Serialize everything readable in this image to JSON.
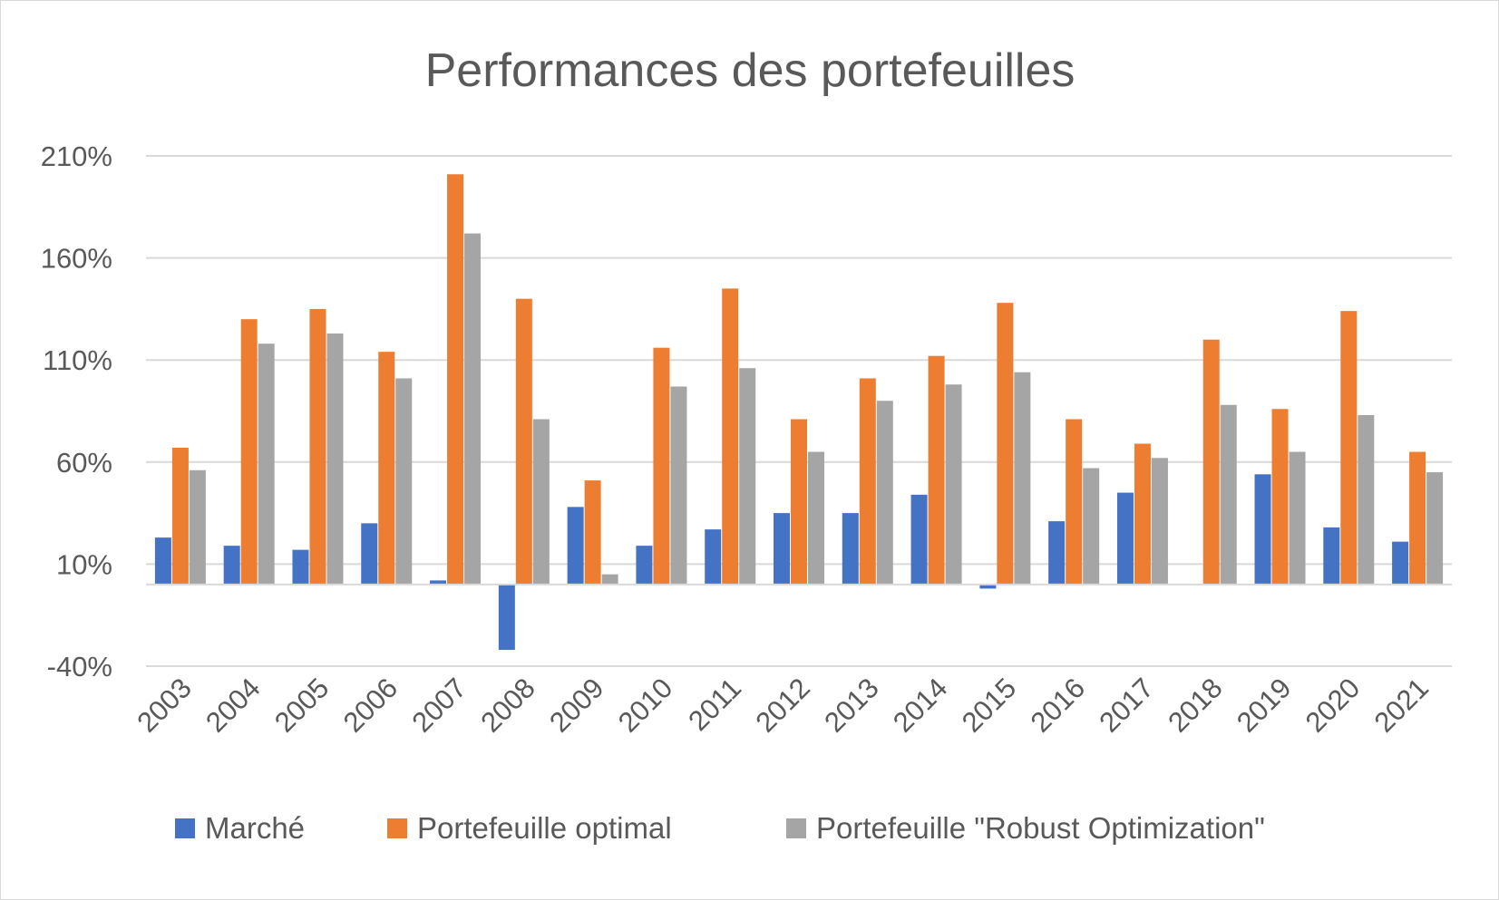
{
  "chart_data": {
    "type": "bar",
    "title": "Performances des portefeuilles",
    "xlabel": "",
    "ylabel": "",
    "categories": [
      "2003",
      "2004",
      "2005",
      "2006",
      "2007",
      "2008",
      "2009",
      "2010",
      "2011",
      "2012",
      "2013",
      "2014",
      "2015",
      "2016",
      "2017",
      "2018",
      "2019",
      "2020",
      "2021"
    ],
    "y_ticks": [
      "210%",
      "160%",
      "110%",
      "60%",
      "10%",
      "-40%"
    ],
    "y_tick_values": [
      210,
      160,
      110,
      60,
      10,
      -40
    ],
    "ylim": [
      -40,
      210
    ],
    "grid": true,
    "legend_position": "bottom",
    "series": [
      {
        "name": "Marché",
        "color": "#4472C4",
        "values": [
          23,
          19,
          17,
          30,
          2,
          -32,
          38,
          19,
          27,
          35,
          35,
          44,
          -2,
          31,
          45,
          0,
          54,
          28,
          21
        ]
      },
      {
        "name": "Portefeuille optimal",
        "color": "#ED7D31",
        "values": [
          67,
          130,
          135,
          114,
          201,
          140,
          51,
          116,
          145,
          81,
          101,
          112,
          138,
          81,
          69,
          120,
          86,
          134,
          65
        ]
      },
      {
        "name": "Portefeuille \"Robust Optimization\"",
        "color": "#A5A5A5",
        "values": [
          56,
          118,
          123,
          101,
          172,
          81,
          5,
          97,
          106,
          65,
          90,
          98,
          104,
          57,
          62,
          88,
          65,
          83,
          55
        ]
      }
    ]
  }
}
